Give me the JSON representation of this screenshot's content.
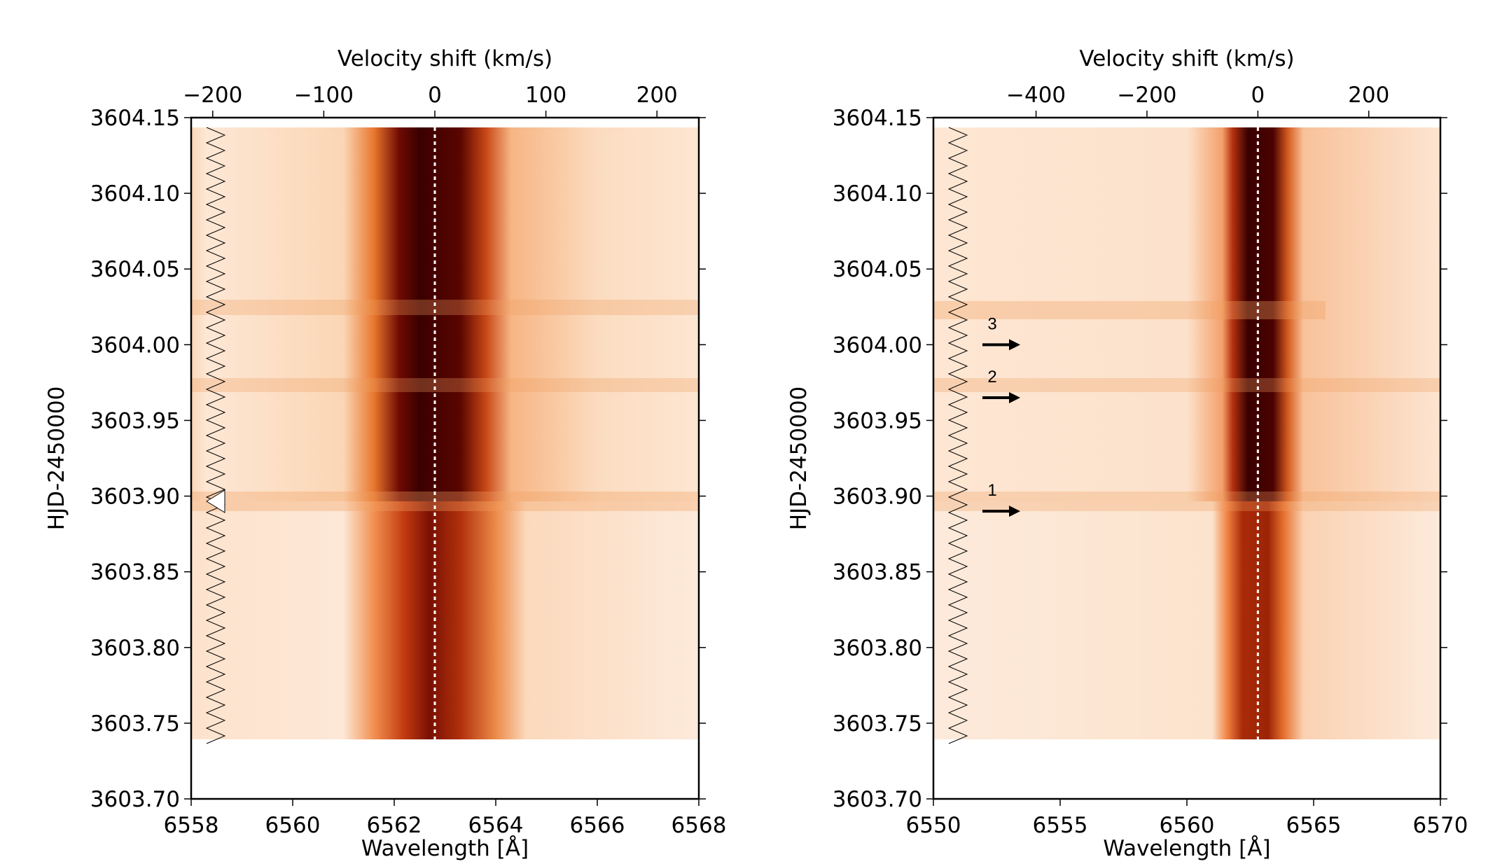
{
  "chart_data": [
    {
      "type": "heatmap",
      "xlabel": "Wavelength [Å]",
      "ylabel": "HJD-2450000",
      "x2label": "Velocity shift (km/s)",
      "xlim": [
        6558,
        6568
      ],
      "xticks": [
        6558,
        6560,
        6562,
        6564,
        6566,
        6568
      ],
      "x2lim": [
        -219.4,
        237.7
      ],
      "x2ticks": [
        {
          "value": -200,
          "label": "−200"
        },
        {
          "value": -100,
          "label": "−100"
        },
        0,
        100,
        200
      ],
      "ylim": [
        3603.7,
        3604.15
      ],
      "yticks": [
        {
          "value": 3603.7,
          "label": "3603.70"
        },
        3603.75,
        {
          "value": 3603.8,
          "label": "3603.80"
        },
        3603.85,
        {
          "value": 3603.9,
          "label": "3603.90"
        },
        3603.95,
        {
          "value": 3604,
          "label": "3604.00"
        },
        3604.05,
        {
          "value": 3604.1,
          "label": "3604.10"
        },
        3604.15
      ],
      "annotations": []
    },
    {
      "type": "heatmap",
      "xlabel": "Wavelength [Å]",
      "ylabel": "HJD-2450000",
      "x2label": "Velocity shift (km/s)",
      "xlim": [
        6550,
        6570
      ],
      "xticks": [
        6550,
        6555,
        6560,
        6565,
        6570
      ],
      "x2lim": [
        -585.1,
        329.1
      ],
      "x2ticks": [
        {
          "value": -400,
          "label": "−400"
        },
        {
          "value": -200,
          "label": "−200"
        },
        0,
        200
      ],
      "ylim": [
        3603.7,
        3604.15
      ],
      "yticks": [
        {
          "value": 3603.7,
          "label": "3603.70"
        },
        3603.75,
        {
          "value": 3603.8,
          "label": "3603.80"
        },
        3603.85,
        {
          "value": 3603.9,
          "label": "3603.90"
        },
        3603.95,
        {
          "value": 3604,
          "label": "3604.00"
        },
        3604.05,
        {
          "value": 3604.1,
          "label": "3604.10"
        },
        3604.15
      ],
      "annotations": [
        {
          "text": "1",
          "y": 3603.89
        },
        {
          "text": "2",
          "y": 3603.965
        },
        {
          "text": "3",
          "y": 3604.0
        }
      ]
    }
  ]
}
